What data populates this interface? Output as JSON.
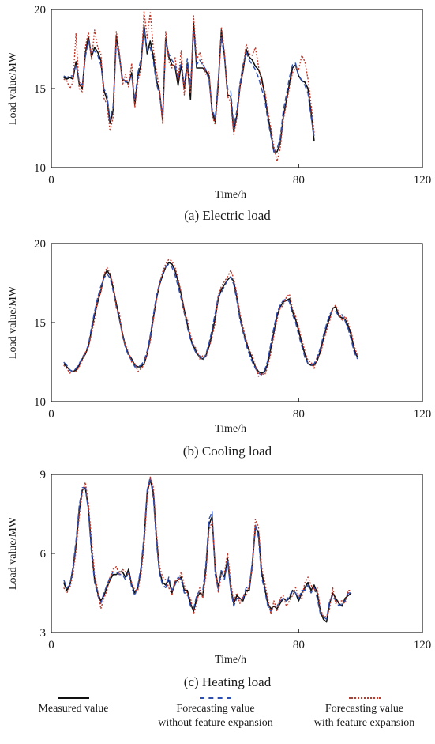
{
  "chart_data": [
    {
      "type": "line",
      "caption": "(a) Electric load",
      "xlabel": "Time/h",
      "ylabel": "Load value/MW",
      "xlim": [
        0,
        120
      ],
      "ylim": [
        10,
        20
      ],
      "xticks": [
        0,
        80,
        120
      ],
      "yticks": [
        10,
        15,
        20
      ],
      "grid": false,
      "x_start": 4,
      "series": [
        {
          "name": "Measured value",
          "color": "#111111",
          "values": [
            15.7,
            15.6,
            15.7,
            15.6,
            16.7,
            15.3,
            15.0,
            17.2,
            18.3,
            17.0,
            17.6,
            17.3,
            16.8,
            14.9,
            14.3,
            12.8,
            13.6,
            18.3,
            17.1,
            15.5,
            15.5,
            15.3,
            16.0,
            14.0,
            15.8,
            16.5,
            19.0,
            17.2,
            18.0,
            17.0,
            15.5,
            14.8,
            13.0,
            18.2,
            17.0,
            16.5,
            16.4,
            15.2,
            16.5,
            15.0,
            16.6,
            14.3,
            19.2,
            16.3,
            16.3,
            16.3,
            16.1,
            15.8,
            13.5,
            12.9,
            15.3,
            18.7,
            17.1,
            14.6,
            14.5,
            12.3,
            13.3,
            15.1,
            16.1,
            17.5,
            17.0,
            16.8,
            16.4,
            16.2,
            15.7,
            14.6,
            13.3,
            12.2,
            11.0,
            11.0,
            11.5,
            13.2,
            14.2,
            15.3,
            16.3,
            16.5,
            15.8,
            15.5,
            15.4,
            15.0,
            13.5,
            11.7
          ]
        },
        {
          "name": "Forecasting value\nwithout feature expansion",
          "color": "#2f4fb0",
          "dash": "7,3",
          "values": [
            15.8,
            15.7,
            15.8,
            15.8,
            16.5,
            15.5,
            15.2,
            17.0,
            18.0,
            17.2,
            17.4,
            17.1,
            16.5,
            15.0,
            14.6,
            13.0,
            13.9,
            17.9,
            17.0,
            15.7,
            15.4,
            15.5,
            15.8,
            14.3,
            16.0,
            16.9,
            18.8,
            17.4,
            17.6,
            16.7,
            15.3,
            14.6,
            13.2,
            18.0,
            17.2,
            16.8,
            16.5,
            15.6,
            16.7,
            15.2,
            16.9,
            15.2,
            18.7,
            16.5,
            16.8,
            16.5,
            16.2,
            15.5,
            13.7,
            13.1,
            15.6,
            18.2,
            17.0,
            15.0,
            14.9,
            12.6,
            13.6,
            15.3,
            16.5,
            17.3,
            16.8,
            16.5,
            16.2,
            15.7,
            15.0,
            14.3,
            13.0,
            12.0,
            11.0,
            11.2,
            11.8,
            13.6,
            14.6,
            15.7,
            16.5,
            16.6,
            15.8,
            15.5,
            15.2,
            14.7,
            13.2,
            12.0
          ]
        },
        {
          "name": "Forecasting value\nwith feature expansion",
          "color": "#c0392b",
          "dash": "2,2",
          "values": [
            15.6,
            15.5,
            15.0,
            15.4,
            18.5,
            15.0,
            14.8,
            17.6,
            18.6,
            16.8,
            18.7,
            17.6,
            17.2,
            14.4,
            14.0,
            12.3,
            13.2,
            18.6,
            17.3,
            15.2,
            15.9,
            15.1,
            16.6,
            13.8,
            15.5,
            16.2,
            19.9,
            18.2,
            19.8,
            17.5,
            16.1,
            14.9,
            12.8,
            18.6,
            16.7,
            16.3,
            17.0,
            15.5,
            17.4,
            14.6,
            16.4,
            14.7,
            19.6,
            16.8,
            17.3,
            16.6,
            15.9,
            16.1,
            13.3,
            12.7,
            15.0,
            18.9,
            17.3,
            14.5,
            14.1,
            12.1,
            13.1,
            15.0,
            16.2,
            17.8,
            17.2,
            17.1,
            17.6,
            16.4,
            15.3,
            14.9,
            13.6,
            12.5,
            11.3,
            10.4,
            11.2,
            13.0,
            14.0,
            15.1,
            16.0,
            16.3,
            16.2,
            17.1,
            16.7,
            15.6,
            14.0,
            12.2
          ]
        }
      ]
    },
    {
      "type": "line",
      "caption": "(b) Cooling load",
      "xlabel": "Time/h",
      "ylabel": "Load value/MW",
      "xlim": [
        0,
        120
      ],
      "ylim": [
        10,
        20
      ],
      "xticks": [
        0,
        80,
        120
      ],
      "yticks": [
        10,
        15,
        20
      ],
      "grid": false,
      "x_start": 4,
      "series": [
        {
          "name": "Measured value",
          "color": "#111111",
          "values": [
            12.4,
            12.2,
            12.0,
            11.9,
            12.0,
            12.3,
            12.7,
            13.0,
            13.5,
            14.5,
            15.5,
            16.3,
            17.0,
            17.9,
            18.3,
            18.0,
            17.2,
            16.2,
            15.3,
            14.3,
            13.5,
            13.0,
            12.7,
            12.3,
            12.2,
            12.2,
            12.4,
            13.0,
            14.0,
            15.3,
            16.5,
            17.4,
            18.0,
            18.5,
            18.8,
            18.7,
            18.3,
            17.6,
            16.8,
            15.8,
            14.9,
            14.0,
            13.5,
            13.1,
            12.8,
            12.7,
            12.9,
            13.5,
            14.3,
            15.3,
            16.5,
            17.1,
            17.4,
            17.7,
            17.9,
            17.6,
            16.6,
            15.4,
            14.5,
            13.8,
            13.2,
            12.7,
            12.2,
            11.9,
            11.8,
            11.9,
            12.4,
            13.4,
            14.4,
            15.4,
            16.0,
            16.3,
            16.4,
            16.5,
            15.7,
            15.2,
            14.5,
            13.7,
            13.0,
            12.4,
            12.3,
            12.3,
            12.6,
            13.2,
            14.0,
            14.7,
            15.3,
            15.9,
            16.0,
            15.4,
            15.3,
            15.2,
            14.8,
            14.2,
            13.3,
            12.8
          ]
        },
        {
          "name": "Forecasting value\nwithout feature expansion",
          "color": "#2f4fb0",
          "dash": "7,3",
          "values": [
            12.5,
            12.3,
            12.0,
            11.9,
            12.1,
            12.4,
            12.8,
            13.1,
            13.6,
            14.7,
            15.7,
            16.6,
            17.3,
            17.8,
            18.1,
            17.8,
            17.0,
            16.0,
            15.2,
            14.2,
            13.4,
            12.9,
            12.6,
            12.2,
            12.2,
            12.3,
            12.6,
            13.2,
            14.2,
            15.5,
            16.7,
            17.5,
            18.1,
            18.5,
            18.7,
            18.5,
            18.0,
            17.3,
            16.5,
            15.6,
            14.7,
            13.9,
            13.4,
            13.0,
            12.9,
            12.6,
            13.0,
            13.7,
            14.6,
            15.6,
            16.7,
            16.9,
            17.3,
            17.7,
            17.9,
            17.4,
            16.4,
            15.2,
            14.4,
            13.6,
            13.0,
            12.5,
            12.1,
            11.8,
            11.7,
            12.0,
            12.6,
            13.7,
            14.7,
            15.6,
            16.1,
            16.4,
            16.5,
            16.3,
            15.5,
            15.0,
            14.2,
            13.5,
            12.8,
            12.4,
            12.3,
            12.4,
            12.8,
            13.4,
            14.2,
            14.9,
            15.5,
            15.8,
            15.7,
            15.4,
            15.5,
            15.1,
            14.6,
            13.9,
            13.1,
            12.7
          ]
        },
        {
          "name": "Forecasting value\nwith feature expansion",
          "color": "#c0392b",
          "dash": "2,2",
          "values": [
            12.3,
            12.1,
            11.8,
            11.9,
            11.9,
            12.2,
            12.6,
            13.1,
            13.4,
            14.3,
            15.2,
            16.5,
            16.9,
            18.0,
            18.5,
            18.1,
            17.4,
            15.9,
            15.6,
            14.1,
            13.6,
            13.1,
            12.5,
            12.4,
            11.9,
            12.1,
            12.3,
            13.0,
            13.8,
            15.2,
            16.4,
            17.5,
            18.2,
            18.7,
            19.0,
            18.9,
            18.5,
            17.8,
            16.9,
            15.6,
            15.2,
            14.2,
            13.6,
            13.3,
            12.7,
            12.9,
            12.8,
            13.4,
            14.1,
            15.0,
            16.7,
            17.3,
            17.6,
            17.9,
            18.3,
            17.8,
            16.8,
            15.6,
            14.7,
            13.9,
            13.3,
            12.9,
            12.3,
            11.6,
            11.8,
            11.7,
            12.2,
            13.1,
            14.2,
            15.2,
            15.9,
            16.1,
            16.6,
            16.8,
            15.9,
            15.4,
            14.7,
            13.9,
            13.2,
            12.6,
            12.5,
            12.1,
            12.8,
            13.0,
            13.8,
            14.5,
            15.1,
            15.9,
            16.1,
            15.6,
            15.1,
            15.4,
            15.0,
            14.4,
            13.5,
            12.9
          ]
        }
      ]
    },
    {
      "type": "line",
      "caption": "(c) Heating load",
      "xlabel": "Time/h",
      "ylabel": "Load value/MW",
      "xlim": [
        0,
        120
      ],
      "ylim": [
        3,
        9
      ],
      "xticks": [
        0,
        80,
        120
      ],
      "yticks": [
        3,
        6,
        9
      ],
      "grid": false,
      "x_start": 4,
      "series": [
        {
          "name": "Measured value",
          "color": "#111111",
          "values": [
            4.9,
            4.6,
            4.8,
            5.4,
            6.3,
            7.6,
            8.4,
            8.5,
            7.7,
            6.2,
            5.0,
            4.5,
            4.2,
            4.4,
            4.7,
            5.0,
            5.2,
            5.2,
            5.3,
            5.3,
            5.1,
            5.4,
            4.8,
            4.5,
            4.7,
            5.4,
            6.5,
            8.3,
            8.8,
            8.3,
            6.6,
            5.3,
            4.9,
            4.8,
            5.0,
            4.5,
            4.9,
            5.0,
            5.1,
            4.6,
            4.6,
            4.1,
            3.8,
            4.3,
            4.5,
            4.4,
            5.4,
            7.1,
            7.4,
            5.4,
            4.7,
            5.3,
            5.1,
            5.8,
            4.7,
            4.1,
            4.4,
            4.3,
            4.2,
            4.6,
            4.6,
            5.6,
            7.0,
            6.8,
            5.3,
            4.7,
            4.1,
            3.9,
            4.0,
            3.9,
            4.1,
            4.3,
            4.2,
            4.3,
            4.6,
            4.5,
            4.2,
            4.5,
            4.7,
            4.9,
            4.6,
            4.8,
            4.5,
            3.8,
            3.5,
            3.4,
            4.1,
            4.5,
            4.3,
            4.1,
            4.0,
            4.3,
            4.4,
            4.5
          ]
        },
        {
          "name": "Forecasting value\nwithout feature expansion",
          "color": "#2f4fb0",
          "dash": "7,3",
          "values": [
            5.0,
            4.7,
            4.8,
            5.5,
            6.5,
            7.8,
            8.5,
            8.5,
            7.6,
            6.0,
            4.9,
            4.4,
            4.1,
            4.5,
            4.8,
            5.1,
            5.3,
            5.3,
            5.2,
            5.2,
            5.0,
            5.3,
            4.7,
            4.4,
            4.8,
            5.5,
            6.7,
            8.4,
            8.9,
            8.1,
            6.4,
            5.2,
            4.8,
            4.7,
            5.1,
            4.6,
            4.8,
            5.1,
            5.0,
            4.5,
            4.5,
            4.0,
            3.9,
            4.4,
            4.6,
            4.6,
            5.6,
            7.3,
            7.6,
            5.2,
            4.6,
            5.4,
            5.0,
            5.7,
            4.6,
            4.0,
            4.3,
            4.3,
            4.3,
            4.7,
            4.7,
            5.7,
            7.1,
            6.6,
            5.1,
            4.6,
            4.0,
            3.8,
            4.0,
            4.0,
            4.2,
            4.3,
            4.2,
            4.4,
            4.6,
            4.5,
            4.3,
            4.6,
            4.6,
            4.8,
            4.5,
            4.7,
            4.3,
            3.7,
            3.6,
            3.5,
            4.2,
            4.4,
            4.2,
            4.0,
            4.1,
            4.2,
            4.5,
            4.5
          ]
        },
        {
          "name": "Forecasting value\nwith feature expansion",
          "color": "#c0392b",
          "dash": "2,2",
          "values": [
            4.7,
            4.5,
            4.7,
            5.2,
            6.1,
            7.4,
            8.3,
            8.7,
            7.9,
            6.5,
            5.2,
            4.6,
            3.9,
            4.3,
            4.6,
            5.1,
            5.4,
            5.5,
            5.2,
            5.4,
            5.3,
            5.2,
            4.9,
            4.6,
            4.6,
            5.2,
            6.3,
            8.1,
            8.9,
            8.5,
            6.8,
            5.5,
            5.1,
            5.0,
            4.7,
            4.4,
            5.0,
            4.9,
            5.3,
            4.8,
            4.4,
            4.3,
            3.7,
            4.1,
            4.7,
            4.3,
            5.2,
            6.9,
            7.2,
            5.6,
            4.5,
            5.2,
            5.3,
            6.0,
            4.9,
            4.2,
            4.5,
            4.1,
            4.4,
            4.4,
            4.8,
            5.4,
            7.3,
            7.0,
            5.5,
            4.9,
            4.3,
            3.7,
            4.2,
            3.8,
            4.3,
            4.4,
            4.0,
            4.2,
            4.4,
            4.7,
            4.4,
            4.3,
            4.9,
            5.1,
            4.8,
            4.6,
            4.7,
            3.9,
            3.6,
            3.6,
            3.9,
            4.7,
            4.1,
            4.2,
            4.2,
            4.1,
            4.6,
            4.6
          ]
        }
      ]
    }
  ],
  "legend": [
    {
      "label": "Measured value",
      "color": "#111111",
      "style": "solid"
    },
    {
      "label": "Forecasting value\nwithout feature expansion",
      "color": "#2f4fb0",
      "style": "dashed"
    },
    {
      "label": "Forecasting value\nwith feature expansion",
      "color": "#c0392b",
      "style": "dotted"
    }
  ]
}
